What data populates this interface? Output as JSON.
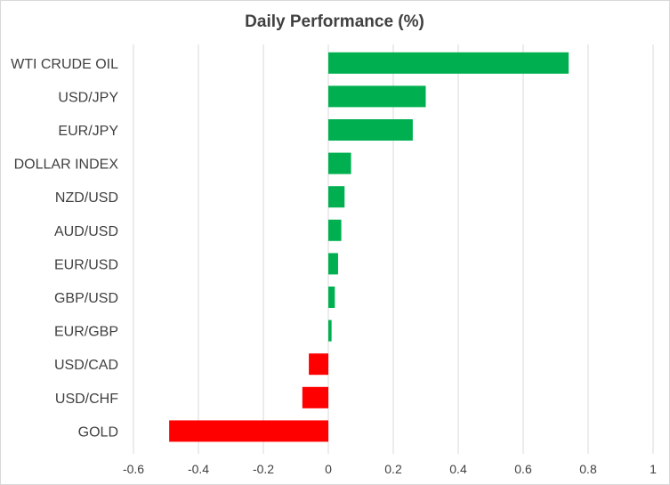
{
  "chart_data": {
    "type": "bar",
    "orientation": "horizontal",
    "title": "Daily Performance (%)",
    "xlabel": "",
    "ylabel": "",
    "categories": [
      "WTI CRUDE OIL",
      "USD/JPY",
      "EUR/JPY",
      "DOLLAR INDEX",
      "NZD/USD",
      "AUD/USD",
      "EUR/USD",
      "GBP/USD",
      "EUR/GBP",
      "USD/CAD",
      "USD/CHF",
      "GOLD"
    ],
    "values": [
      0.74,
      0.3,
      0.26,
      0.07,
      0.05,
      0.04,
      0.03,
      0.02,
      0.01,
      -0.06,
      -0.08,
      -0.49
    ],
    "xlim": [
      -0.6,
      1
    ],
    "xticks": [
      "-0.6",
      "-0.4",
      "-0.2",
      "0",
      "0.2",
      "0.4",
      "0.6",
      "0.8",
      "1"
    ],
    "xtick_values": [
      -0.6,
      -0.4,
      -0.2,
      0,
      0.2,
      0.4,
      0.6,
      0.8,
      1
    ],
    "grid": "vertical",
    "legend": "none",
    "colors": {
      "positive": "#00b050",
      "negative": "#ff0000",
      "grid": "#d9d9d9",
      "text": "#404040"
    }
  }
}
